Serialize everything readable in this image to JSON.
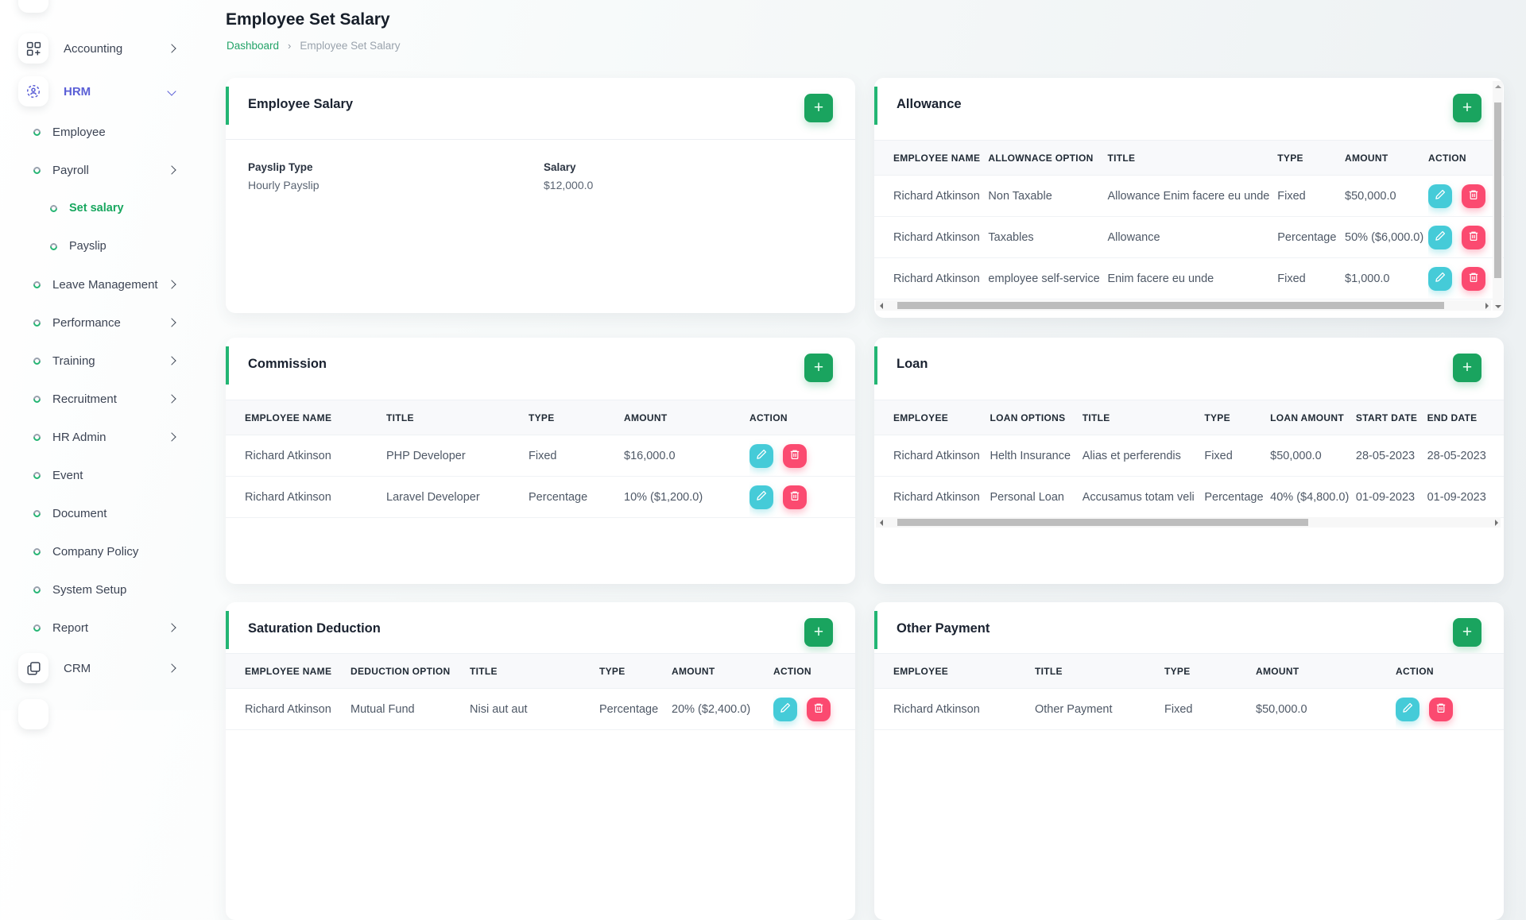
{
  "colors": {
    "green_button": "#1aa45f",
    "green_accent": "#22b573",
    "green_text": "#18a75f",
    "indigo": "#5b5fd6",
    "edit_button": "#45cbd8",
    "delete_button": "#fb4a70"
  },
  "add_button_label": "+",
  "page": {
    "title": "Employee Set Salary",
    "breadcrumb_home": "Dashboard",
    "breadcrumb_sep": "›",
    "breadcrumb_current": "Employee Set Salary"
  },
  "sidebar": {
    "items": [
      {
        "label": "Accounting",
        "icon": "accounting-icon",
        "chevron": "right",
        "level": 0
      },
      {
        "label": "HRM",
        "icon": "hrm-icon",
        "chevron": "down",
        "level": 0,
        "state": "active-indigo"
      },
      {
        "label": "Employee",
        "level": 1
      },
      {
        "label": "Payroll",
        "chevron": "right",
        "level": 1
      },
      {
        "label": "Set salary",
        "level": 2,
        "state": "active-green"
      },
      {
        "label": "Payslip",
        "level": 2
      },
      {
        "label": "Leave Management",
        "chevron": "right",
        "level": 1
      },
      {
        "label": "Performance",
        "chevron": "right",
        "level": 1
      },
      {
        "label": "Training",
        "chevron": "right",
        "level": 1
      },
      {
        "label": "Recruitment",
        "chevron": "right",
        "level": 1
      },
      {
        "label": "HR Admin",
        "chevron": "right",
        "level": 1
      },
      {
        "label": "Event",
        "level": 1
      },
      {
        "label": "Document",
        "level": 1
      },
      {
        "label": "Company Policy",
        "level": 1
      },
      {
        "label": "System Setup",
        "level": 1
      },
      {
        "label": "Report",
        "chevron": "right",
        "level": 1
      },
      {
        "label": "CRM",
        "icon": "crm-icon",
        "chevron": "right",
        "level": 0
      }
    ]
  },
  "cards": {
    "employee_salary": {
      "title": "Employee Salary",
      "fields": [
        {
          "label": "Payslip Type",
          "value": "Hourly Payslip"
        },
        {
          "label": "Salary",
          "value": "$12,000.0"
        }
      ]
    },
    "allowance": {
      "title": "Allowance",
      "columns": [
        "EMPLOYEE NAME",
        "ALLOWNACE OPTION",
        "TITLE",
        "TYPE",
        "AMOUNT",
        "ACTION"
      ],
      "rows": [
        [
          "Richard Atkinson",
          "Non Taxable",
          "Allowance Enim facere eu unde",
          "Fixed",
          "$50,000.0"
        ],
        [
          "Richard Atkinson",
          "Taxables",
          "Allowance",
          "Percentage",
          "50% ($6,000.0)"
        ],
        [
          "Richard Atkinson",
          "employee self-service",
          "Enim facere eu unde",
          "Fixed",
          "$1,000.0"
        ]
      ],
      "row_actions": true
    },
    "commission": {
      "title": "Commission",
      "columns": [
        "EMPLOYEE NAME",
        "TITLE",
        "TYPE",
        "AMOUNT",
        "ACTION"
      ],
      "rows": [
        [
          "Richard Atkinson",
          "PHP Developer",
          "Fixed",
          "$16,000.0"
        ],
        [
          "Richard Atkinson",
          "Laravel Developer",
          "Percentage",
          "10% ($1,200.0)"
        ]
      ],
      "row_actions": true
    },
    "loan": {
      "title": "Loan",
      "columns": [
        "EMPLOYEE",
        "LOAN OPTIONS",
        "TITLE",
        "TYPE",
        "LOAN AMOUNT",
        "START DATE",
        "END DATE"
      ],
      "rows": [
        [
          "Richard Atkinson",
          "Helth Insurance",
          "Alias et perferendis",
          "Fixed",
          "$50,000.0",
          "28-05-2023",
          "28-05-2023"
        ],
        [
          "Richard Atkinson",
          "Personal Loan",
          "Accusamus totam veli",
          "Percentage",
          "40% ($4,800.0)",
          "01-09-2023",
          "01-09-2023"
        ]
      ],
      "row_actions": false
    },
    "saturation_deduction": {
      "title": "Saturation Deduction",
      "columns": [
        "EMPLOYEE NAME",
        "DEDUCTION OPTION",
        "TITLE",
        "TYPE",
        "AMOUNT",
        "ACTION"
      ],
      "rows": [
        [
          "Richard Atkinson",
          "Mutual Fund",
          "Nisi aut aut",
          "Percentage",
          "20% ($2,400.0)"
        ]
      ],
      "row_actions": true
    },
    "other_payment": {
      "title": "Other Payment",
      "columns": [
        "EMPLOYEE",
        "TITLE",
        "TYPE",
        "AMOUNT",
        "ACTION"
      ],
      "rows": [
        [
          "Richard Atkinson",
          "Other Payment",
          "Fixed",
          "$50,000.0"
        ]
      ],
      "row_actions": true
    }
  }
}
